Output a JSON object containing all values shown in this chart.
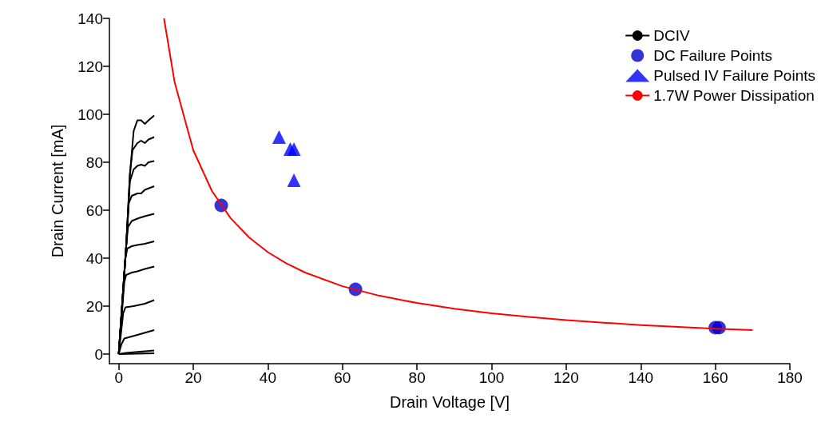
{
  "chart_data": {
    "type": "line",
    "xlabel": "Drain Voltage [V]",
    "ylabel": "Drain Current [mA]",
    "xlim": [
      -2.5,
      180
    ],
    "xticks": [
      0,
      20,
      40,
      60,
      80,
      100,
      120,
      140,
      160,
      180
    ],
    "ylim": [
      -4,
      140
    ],
    "yticks": [
      0,
      20,
      40,
      60,
      80,
      100,
      120,
      140
    ],
    "grid": false,
    "legend": "top right",
    "series": [
      {
        "name": "DCIV",
        "type": "line",
        "color": "#000000",
        "marker": "none",
        "x": [
          0,
          2,
          3,
          4,
          5,
          6,
          7,
          8,
          9.5
        ],
        "values": [
          0,
          45,
          75,
          93,
          97.5,
          97.5,
          96,
          97.5,
          99.5
        ]
      },
      {
        "type": "line",
        "color": "#000000",
        "marker": "none",
        "x": [
          0,
          2,
          3,
          3.7,
          5,
          6,
          7,
          8,
          9.5
        ],
        "values": [
          0,
          45,
          75,
          85,
          88,
          89,
          88,
          89.5,
          90.5
        ]
      },
      {
        "type": "line",
        "color": "#000000",
        "marker": "none",
        "x": [
          0,
          2,
          3,
          4,
          5,
          6,
          7,
          8,
          9.5
        ],
        "values": [
          0,
          45,
          72,
          77,
          78.5,
          79,
          78.5,
          80,
          80.5
        ]
      },
      {
        "type": "line",
        "color": "#000000",
        "marker": "none",
        "x": [
          0,
          2,
          2.7,
          3.5,
          5,
          6,
          7,
          9.5
        ],
        "values": [
          0,
          45,
          63,
          66,
          67,
          67,
          68.5,
          70
        ]
      },
      {
        "type": "line",
        "color": "#000000",
        "marker": "none",
        "x": [
          0,
          2,
          2.5,
          3.5,
          5,
          7,
          9.5
        ],
        "values": [
          0,
          45,
          53,
          55.5,
          56.5,
          57.5,
          58.5
        ]
      },
      {
        "type": "line",
        "color": "#000000",
        "marker": "none",
        "x": [
          0,
          1.8,
          2.3,
          3.5,
          5,
          7,
          9.5
        ],
        "values": [
          0,
          40,
          44,
          45,
          45.5,
          46,
          47
        ]
      },
      {
        "type": "line",
        "color": "#000000",
        "marker": "none",
        "x": [
          0,
          1.5,
          2,
          3.5,
          5,
          7,
          9.5
        ],
        "values": [
          0,
          30,
          33,
          34,
          34.5,
          35.5,
          36.5
        ]
      },
      {
        "type": "line",
        "color": "#000000",
        "marker": "none",
        "x": [
          0,
          1.2,
          1.8,
          4,
          7,
          9.5
        ],
        "values": [
          0,
          17,
          19.5,
          20,
          21,
          22.5
        ]
      },
      {
        "type": "line",
        "color": "#000000",
        "marker": "none",
        "x": [
          0,
          0.7,
          1.5,
          5,
          9.5
        ],
        "values": [
          0,
          4,
          6.5,
          8,
          10
        ]
      },
      {
        "type": "line",
        "color": "#000000",
        "marker": "none",
        "x": [
          0,
          2,
          9.5
        ],
        "values": [
          0,
          0.5,
          1.5
        ]
      },
      {
        "type": "line",
        "color": "#000000",
        "marker": "none",
        "x": [
          0,
          9.5
        ],
        "values": [
          0,
          0.3
        ]
      },
      {
        "name": "DC Failure Points",
        "type": "scatter",
        "color": "#0000cc",
        "marker": "circle",
        "x": [
          27.5,
          63.5,
          160,
          161
        ],
        "values": [
          62,
          27,
          11,
          11
        ]
      },
      {
        "name": "Pulsed IV Failure Points",
        "type": "scatter",
        "color": "#0000ff",
        "marker": "triangle",
        "x": [
          43,
          46,
          47,
          47
        ],
        "values": [
          90.5,
          85.5,
          85.5,
          72.5
        ]
      },
      {
        "name": "1.7W Power Dissipation",
        "type": "line",
        "color": "#ff0000",
        "marker": "none",
        "x": [
          12.14,
          15,
          20,
          25,
          30,
          35,
          40,
          45,
          50,
          60,
          70,
          80,
          90,
          100,
          110,
          120,
          130,
          140,
          150,
          160,
          170
        ],
        "values": [
          140,
          113.3,
          85,
          68,
          56.7,
          48.6,
          42.5,
          37.8,
          34,
          28.3,
          24.3,
          21.3,
          18.9,
          17,
          15.5,
          14.2,
          13.1,
          12.1,
          11.3,
          10.6,
          10
        ]
      }
    ]
  }
}
